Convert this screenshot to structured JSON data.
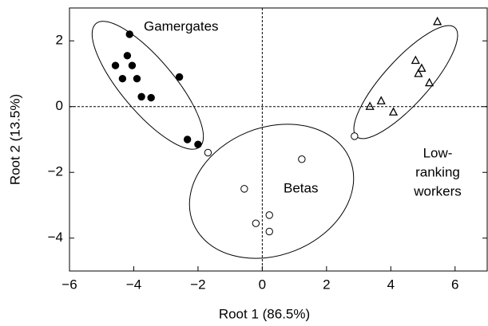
{
  "chart_data": {
    "type": "scatter",
    "x_label": "Root 1 (86.5%)",
    "y_label": "Root 2 (13.5%)",
    "xlim": [
      -6,
      7
    ],
    "ylim": [
      -5,
      3
    ],
    "xticks": [
      {
        "value": -6,
        "label": "−6"
      },
      {
        "value": -4,
        "label": "−4"
      },
      {
        "value": -2,
        "label": "−2"
      },
      0,
      2,
      4,
      6
    ],
    "yticks": [
      {
        "value": -4,
        "label": "−4"
      },
      {
        "value": -2,
        "label": "−2"
      },
      0,
      2
    ],
    "zero_lines": true,
    "series": [
      {
        "name": "Gamergates",
        "marker": "filled-circle",
        "color": "#000000",
        "x": [
          -4.13,
          -4.57,
          -4.2,
          -4.05,
          -4.35,
          -3.9,
          -3.76,
          -3.46,
          -2.58,
          -2.33,
          -2.0
        ],
        "values": [
          2.2,
          1.25,
          1.55,
          1.25,
          0.85,
          0.85,
          0.3,
          0.27,
          0.9,
          -1.0,
          -1.15
        ]
      },
      {
        "name": "Betas",
        "marker": "open-circle",
        "color": "#000000",
        "x": [
          -1.69,
          -0.56,
          1.23,
          2.87,
          0.22,
          -0.2,
          0.22
        ],
        "values": [
          -1.4,
          -2.5,
          -1.6,
          -0.9,
          -3.3,
          -3.55,
          -3.8
        ]
      },
      {
        "name": [
          "Low-",
          "ranking",
          "workers"
        ],
        "marker": "open-triangle",
        "color": "#000000",
        "x": [
          5.45,
          4.77,
          4.96,
          4.86,
          5.2,
          3.7,
          3.35,
          4.08
        ],
        "values": [
          2.58,
          1.4,
          1.16,
          1.0,
          0.72,
          0.17,
          0.0,
          -0.17
        ]
      }
    ]
  }
}
